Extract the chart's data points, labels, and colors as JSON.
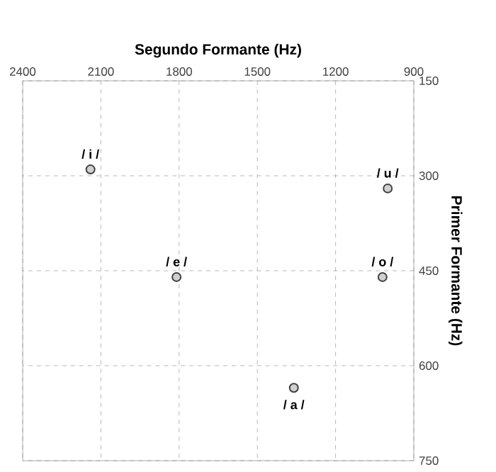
{
  "chart_data": {
    "type": "scatter",
    "xlabel": "Segundo Formante (Hz)",
    "ylabel": "Primer Formante (Hz)",
    "series": [
      {
        "color": "#d0d0d0",
        "x": [
          2140,
          1810,
          1360,
          1020,
          1000
        ],
        "values": [
          290,
          460,
          635,
          460,
          320
        ]
      }
    ],
    "annotations": [
      {
        "text": "/ i /",
        "x": 2140,
        "y": 290
      },
      {
        "text": "/ e /",
        "x": 1810,
        "y": 460
      },
      {
        "text": "/ a /",
        "x": 1360,
        "y": 635
      },
      {
        "text": "/ o /",
        "x": 1020,
        "y": 460
      },
      {
        "text": "/ u /",
        "x": 1000,
        "y": 320
      }
    ],
    "xlim": [
      2400,
      900
    ],
    "xticks": [
      2400,
      2100,
      1800,
      1500,
      1200,
      900
    ],
    "ylim": [
      750,
      150
    ],
    "yticks": [
      150,
      300,
      450,
      600,
      750
    ],
    "grid": true,
    "marker": "circle"
  }
}
